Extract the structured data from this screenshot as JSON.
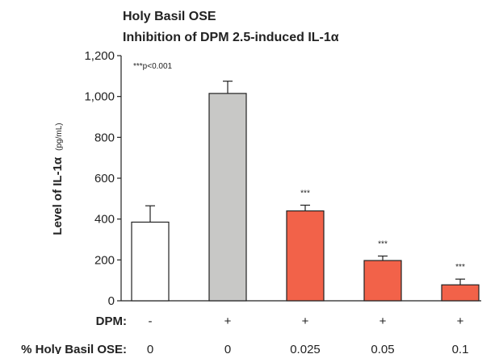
{
  "chart_data": {
    "type": "bar",
    "title_lines": [
      "Holy Basil OSE",
      "Inhibition of DPM 2.5-induced IL-1α"
    ],
    "ylabel": "Level of IL-1α",
    "ylabel_unit": "(pg/mL)",
    "ylim": [
      0,
      1200
    ],
    "yticks": [
      0,
      200,
      400,
      600,
      800,
      1000,
      1200
    ],
    "ytick_labels": [
      "0",
      "200",
      "400",
      "600",
      "800",
      "1,000",
      "1,200"
    ],
    "annotation": "***p<0.001",
    "bars": [
      {
        "value": 385,
        "error": 80,
        "color": "#ffffff",
        "significance": ""
      },
      {
        "value": 1015,
        "error": 60,
        "color": "#c8c8c6",
        "significance": ""
      },
      {
        "value": 440,
        "error": 28,
        "color": "#f26249",
        "significance": "***"
      },
      {
        "value": 197,
        "error": 22,
        "color": "#f26249",
        "significance": "***"
      },
      {
        "value": 78,
        "error": 28,
        "color": "#f26249",
        "significance": "***"
      }
    ],
    "rows": [
      {
        "label": "DPM:",
        "values": [
          "-",
          "+",
          "+",
          "+",
          "+"
        ]
      },
      {
        "label": "% Holy Basil OSE:",
        "values": [
          "0",
          "0",
          "0.025",
          "0.05",
          "0.1"
        ]
      }
    ]
  }
}
